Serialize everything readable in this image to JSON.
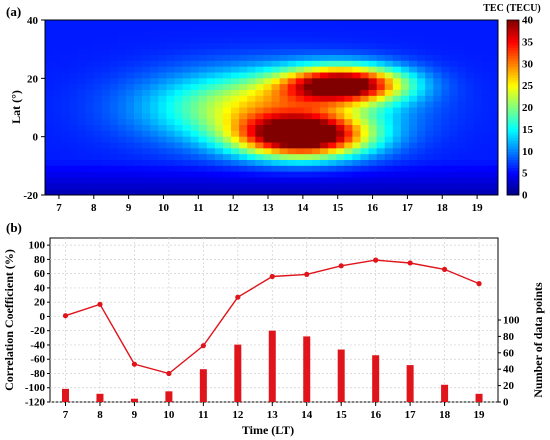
{
  "chart_data": [
    {
      "type": "heatmap",
      "panel_label": "(a)",
      "x_ticks": [
        "7",
        "8",
        "9",
        "10",
        "11",
        "12",
        "13",
        "14",
        "15",
        "16",
        "17",
        "18",
        "19"
      ],
      "xlim": [
        6.6,
        19.6
      ],
      "ylabel": "Lat (°)",
      "y_ticks": [
        "-20",
        "0",
        "20",
        "40"
      ],
      "ylim": [
        -20,
        40
      ],
      "colorbar": {
        "title": "TEC (TECU)",
        "range": [
          0,
          40
        ],
        "ticks": [
          "0",
          "5",
          "10",
          "15",
          "20",
          "25",
          "30",
          "35",
          "40"
        ]
      },
      "field_model": {
        "description_free": true,
        "components": [
          {
            "t": 14.0,
            "lat": 0,
            "amp": 36,
            "st": 1.8,
            "sl": 7
          },
          {
            "t": 15.2,
            "lat": 18,
            "amp": 33,
            "st": 1.7,
            "sl": 6
          },
          {
            "t": 13.0,
            "lat": 10,
            "amp": 20,
            "st": 3.2,
            "sl": 12
          }
        ],
        "base": 6
      }
    },
    {
      "type": "line+bar",
      "panel_label": "(b)",
      "xlabel": "Time (LT)",
      "x_ticks": [
        "7",
        "8",
        "9",
        "10",
        "11",
        "12",
        "13",
        "14",
        "15",
        "16",
        "17",
        "18",
        "19"
      ],
      "left_axis": {
        "label": "Correlation Coefficient (%)",
        "ylim": [
          -120,
          110
        ],
        "ticks": [
          "-120",
          "-100",
          "-80",
          "-60",
          "-40",
          "-20",
          "0",
          "20",
          "40",
          "60",
          "80",
          "100"
        ]
      },
      "right_axis": {
        "label": "Number of data points",
        "ylim": [
          0,
          200
        ],
        "ticks": [
          "0",
          "20",
          "40",
          "60",
          "80",
          "100"
        ]
      },
      "series": [
        {
          "kind": "line",
          "color": "#e0141b",
          "x": [
            7,
            8,
            9,
            10,
            11,
            12,
            13,
            14,
            15,
            16,
            17,
            18,
            19
          ],
          "values": [
            1,
            17,
            -67,
            -80,
            -41,
            27,
            56,
            59,
            71,
            79,
            75,
            66,
            46
          ]
        },
        {
          "kind": "bar",
          "color": "#e0141b",
          "x": [
            7,
            8,
            9,
            10,
            11,
            12,
            13,
            14,
            15,
            16,
            17,
            18,
            19
          ],
          "values": [
            16,
            10,
            4,
            13,
            40,
            70,
            87,
            80,
            64,
            57,
            45,
            21,
            10
          ]
        }
      ]
    }
  ]
}
